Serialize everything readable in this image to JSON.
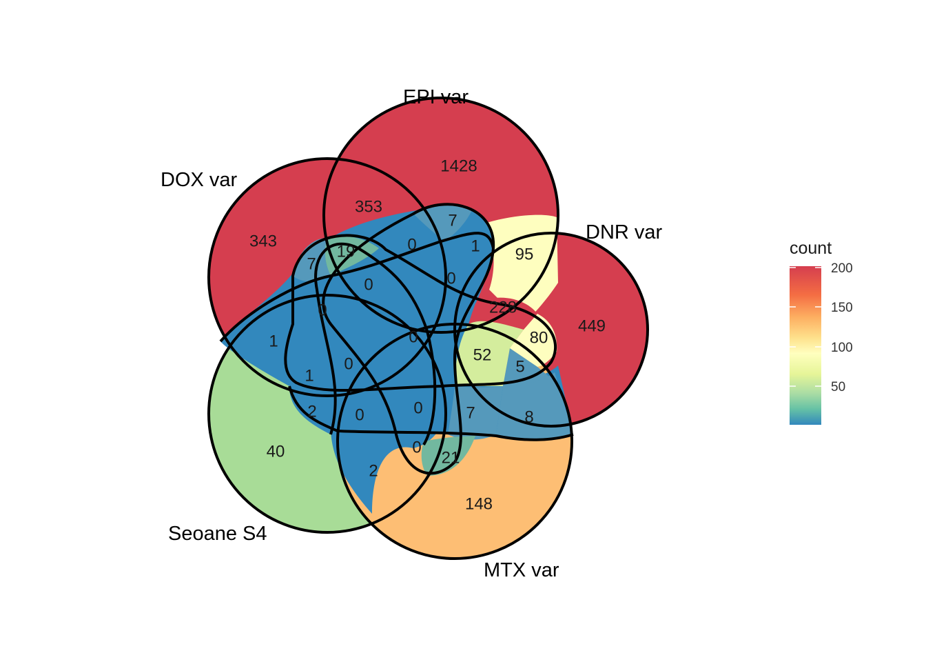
{
  "legend": {
    "title": "count",
    "ticks": [
      "200",
      "150",
      "100",
      "50"
    ],
    "colors": [
      "#d53e4f",
      "#f46d43",
      "#fdae61",
      "#fee08b",
      "#ffffbf",
      "#e6f598",
      "#abdda4",
      "#66c2a5",
      "#3288bd"
    ]
  },
  "sets": [
    {
      "name": "EPI var"
    },
    {
      "name": "DOX var"
    },
    {
      "name": "DNR var"
    },
    {
      "name": "Seoane S4"
    },
    {
      "name": "MTX var"
    }
  ],
  "regions": [
    {
      "value": "1428",
      "color": "#d53e4f"
    },
    {
      "value": "343",
      "color": "#d53e4f"
    },
    {
      "value": "449",
      "color": "#d53e4f"
    },
    {
      "value": "40",
      "color": "#a8dc97"
    },
    {
      "value": "148",
      "color": "#fdbe74"
    },
    {
      "value": "353"
    },
    {
      "value": "7"
    },
    {
      "value": "95",
      "color": "#fefebf"
    },
    {
      "value": "19",
      "color": "#72b89f"
    },
    {
      "value": "0"
    },
    {
      "value": "1"
    },
    {
      "value": "7"
    },
    {
      "value": "0"
    },
    {
      "value": "0"
    },
    {
      "value": "228"
    },
    {
      "value": "0"
    },
    {
      "value": "80"
    },
    {
      "value": "449"
    },
    {
      "value": "1"
    },
    {
      "value": "0"
    },
    {
      "value": "52",
      "color": "#d4ed9d"
    },
    {
      "value": "1"
    },
    {
      "value": "0"
    },
    {
      "value": "5"
    },
    {
      "value": "2"
    },
    {
      "value": "0"
    },
    {
      "value": "0"
    },
    {
      "value": "7"
    },
    {
      "value": "8"
    },
    {
      "value": "0"
    },
    {
      "value": "21"
    },
    {
      "value": "2"
    }
  ]
}
